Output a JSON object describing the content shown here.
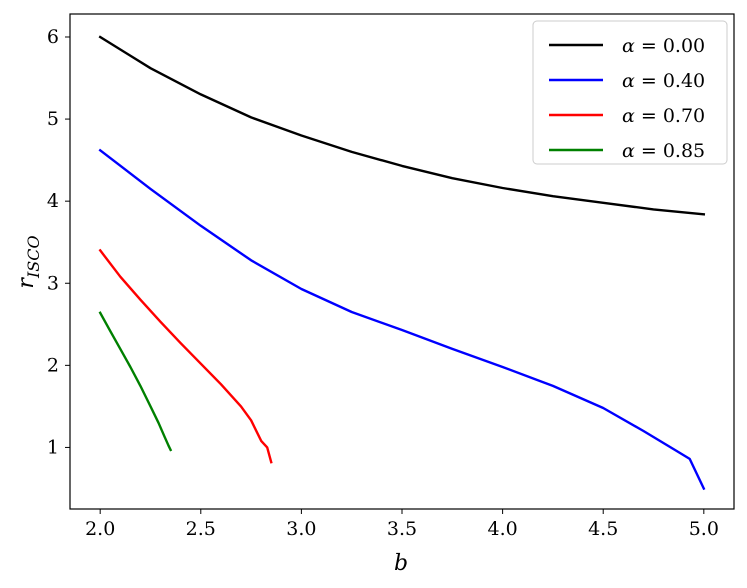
{
  "chart_data": {
    "type": "line",
    "xlabel": "b",
    "ylabel": {
      "main": "r",
      "sub": "ISCO"
    },
    "xlim": [
      1.85,
      5.15
    ],
    "ylim": [
      0.25,
      6.28
    ],
    "xticks": [
      2.0,
      2.5,
      3.0,
      3.5,
      4.0,
      4.5,
      5.0
    ],
    "xtick_labels": [
      "2.0",
      "2.5",
      "3.0",
      "3.5",
      "4.0",
      "4.5",
      "5.0"
    ],
    "yticks": [
      1,
      2,
      3,
      4,
      5,
      6
    ],
    "ytick_labels": [
      "1",
      "2",
      "3",
      "4",
      "5",
      "6"
    ],
    "grid": false,
    "legend_position": "top-right",
    "series": [
      {
        "name": "α = 0.00",
        "legend_symbol": "α",
        "legend_value": "= 0.00",
        "color": "#000000",
        "x": [
          2.0,
          2.25,
          2.5,
          2.75,
          3.0,
          3.25,
          3.5,
          3.75,
          4.0,
          4.25,
          4.5,
          4.75,
          5.0
        ],
        "y": [
          6.0,
          5.62,
          5.3,
          5.02,
          4.8,
          4.6,
          4.43,
          4.28,
          4.16,
          4.06,
          3.98,
          3.9,
          3.84
        ]
      },
      {
        "name": "α = 0.40",
        "legend_symbol": "α",
        "legend_value": "= 0.40",
        "color": "#0000ff",
        "x": [
          2.0,
          2.25,
          2.5,
          2.75,
          3.0,
          3.25,
          3.5,
          3.75,
          4.0,
          4.25,
          4.5,
          4.7,
          4.85,
          4.93,
          5.0
        ],
        "y": [
          4.62,
          4.15,
          3.7,
          3.28,
          2.93,
          2.65,
          2.43,
          2.2,
          1.98,
          1.75,
          1.48,
          1.2,
          0.98,
          0.86,
          0.5
        ]
      },
      {
        "name": "α = 0.70",
        "legend_symbol": "α",
        "legend_value": "= 0.70",
        "color": "#ff0000",
        "x": [
          2.0,
          2.1,
          2.2,
          2.3,
          2.4,
          2.5,
          2.6,
          2.7,
          2.75,
          2.8,
          2.83,
          2.85
        ],
        "y": [
          3.4,
          3.08,
          2.8,
          2.53,
          2.27,
          2.02,
          1.77,
          1.5,
          1.33,
          1.08,
          1.0,
          0.82
        ]
      },
      {
        "name": "α = 0.85",
        "legend_symbol": "α",
        "legend_value": "= 0.85",
        "color": "#008000",
        "x": [
          2.0,
          2.05,
          2.1,
          2.15,
          2.2,
          2.25,
          2.29,
          2.32,
          2.34,
          2.35
        ],
        "y": [
          2.64,
          2.42,
          2.2,
          1.98,
          1.75,
          1.5,
          1.3,
          1.13,
          1.02,
          0.97
        ]
      }
    ]
  }
}
